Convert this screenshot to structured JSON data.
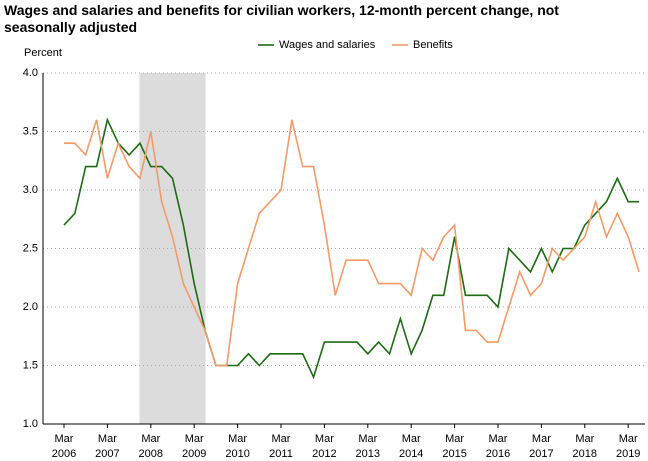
{
  "chart_data": {
    "type": "line",
    "title": "Wages and salaries and benefits for civilian workers, 12-month percent change, not seasonally adjusted",
    "y_label": "Percent",
    "categories": [
      "Mar 2006",
      null,
      null,
      null,
      "Mar 2007",
      null,
      null,
      null,
      "Mar 2008",
      null,
      null,
      null,
      "Mar 2009",
      null,
      null,
      null,
      "Mar 2010",
      null,
      null,
      null,
      "Mar 2011",
      null,
      null,
      null,
      "Mar 2012",
      null,
      null,
      null,
      "Mar 2013",
      null,
      null,
      null,
      "Mar 2014",
      null,
      null,
      null,
      "Mar 2015",
      null,
      null,
      null,
      "Mar 2016",
      null,
      null,
      null,
      "Mar 2017",
      null,
      null,
      null,
      "Mar 2018",
      null,
      null,
      null,
      "Mar 2019",
      null
    ],
    "series": [
      {
        "name": "Wages and salaries",
        "color": "#1d6b12",
        "values": [
          2.7,
          2.8,
          3.2,
          3.2,
          3.6,
          3.4,
          3.3,
          3.4,
          3.2,
          3.2,
          3.1,
          2.7,
          2.2,
          1.8,
          1.5,
          1.5,
          1.5,
          1.6,
          1.5,
          1.6,
          1.6,
          1.6,
          1.6,
          1.4,
          1.7,
          1.7,
          1.7,
          1.7,
          1.6,
          1.7,
          1.6,
          1.9,
          1.6,
          1.8,
          2.1,
          2.1,
          2.6,
          2.1,
          2.1,
          2.1,
          2.0,
          2.5,
          2.4,
          2.3,
          2.5,
          2.3,
          2.5,
          2.5,
          2.7,
          2.8,
          2.9,
          3.1,
          2.9,
          2.9
        ]
      },
      {
        "name": "Benefits",
        "color": "#f59a68",
        "values": [
          3.4,
          3.4,
          3.3,
          3.6,
          3.1,
          3.4,
          3.2,
          3.1,
          3.5,
          2.9,
          2.6,
          2.2,
          2.0,
          1.8,
          1.5,
          1.5,
          2.2,
          2.5,
          2.8,
          2.9,
          3.0,
          3.6,
          3.2,
          3.2,
          2.7,
          2.1,
          2.4,
          2.4,
          2.4,
          2.2,
          2.2,
          2.2,
          2.1,
          2.5,
          2.4,
          2.6,
          2.7,
          1.8,
          1.8,
          1.7,
          1.7,
          2.0,
          2.3,
          2.1,
          2.2,
          2.5,
          2.4,
          2.5,
          2.6,
          2.9,
          2.6,
          2.8,
          2.6,
          2.3
        ]
      }
    ],
    "ylim": [
      1.0,
      4.0
    ],
    "yticks": [
      {
        "value": 1.0,
        "label": "1.0"
      },
      {
        "value": 1.5,
        "label": "1.5"
      },
      {
        "value": 2.0,
        "label": "2.0"
      },
      {
        "value": 2.5,
        "label": "2.5"
      },
      {
        "value": 3.0,
        "label": "3.0"
      },
      {
        "value": 3.5,
        "label": "3.5"
      },
      {
        "value": 4.0,
        "label": "4.0"
      }
    ],
    "grid": true
  }
}
